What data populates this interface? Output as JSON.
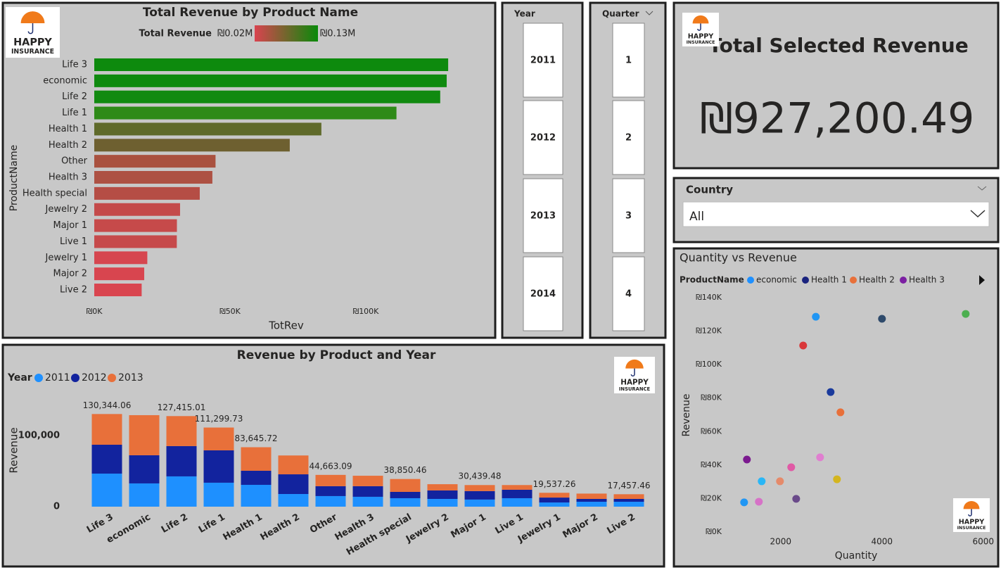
{
  "logo": {
    "line1": "HAPPY",
    "line2": "INSURANCE"
  },
  "chart_data": [
    {
      "type": "hbar",
      "title": "Total Revenue by Product Name",
      "legend_title": "Total Revenue",
      "legend_min_label": "₪0.02M",
      "legend_max_label": "₪0.13M",
      "gradient": [
        "#d9434f",
        "#0a8a0a"
      ],
      "categories": [
        "Life 3",
        "economic",
        "Life 2",
        "Life 1",
        "Health 1",
        "Health 2",
        "Other",
        "Health 3",
        "Health special",
        "Jewelry 2",
        "Major 1",
        "Live 1",
        "Jewelry 1",
        "Major 2",
        "Live 2"
      ],
      "values": [
        130344.06,
        129800,
        127415.01,
        111299.73,
        83645.72,
        72000,
        44663.09,
        43500,
        38850.46,
        31600,
        30439.48,
        30400,
        19537.26,
        18400,
        17457.46
      ],
      "colors": [
        "#0d8a0d",
        "#0f8a0f",
        "#118a10",
        "#2e8a18",
        "#5f6a2a",
        "#6e6030",
        "#a9513f",
        "#ad5143",
        "#b54d45",
        "#c44a4a",
        "#c64a4a",
        "#c64a4b",
        "#d6464f",
        "#d8454f",
        "#d9454f"
      ],
      "xlim": [
        0,
        132000
      ],
      "xticks": [
        {
          "value": 0,
          "label": "₪0K"
        },
        {
          "value": 50000,
          "label": "₪50K"
        },
        {
          "value": 100000,
          "label": "₪100K"
        }
      ],
      "xlabel": "TotRev",
      "ylabel": "ProductName"
    },
    {
      "type": "stacked_bar",
      "title": "Revenue by Product and Year",
      "legend_title": "Year",
      "categories": [
        "Life 3",
        "economic",
        "Life 2",
        "Life 1",
        "Health 1",
        "Health 2",
        "Other",
        "Health 3",
        "Health special",
        "Jewelry 2",
        "Major 1",
        "Live 1",
        "Jewelry 1",
        "Major 2",
        "Live 2"
      ],
      "series": [
        {
          "name": "2011",
          "color": "#1e90ff",
          "values": [
            46500,
            32700,
            42600,
            33700,
            30700,
            17800,
            14900,
            13900,
            11900,
            10900,
            10000,
            11900,
            5900,
            6900,
            6900
          ]
        },
        {
          "name": "2012",
          "color": "#12239e",
          "values": [
            40600,
            39600,
            42600,
            45500,
            19800,
            27700,
            13900,
            14900,
            8900,
            11900,
            11900,
            11900,
            6900,
            4000,
            4000
          ]
        },
        {
          "name": "2013",
          "color": "#e8703a",
          "values": [
            43200,
            56400,
            42200,
            32100,
            33100,
            26500,
            15900,
            14700,
            18100,
            8800,
            8500,
            6600,
            6700,
            7500,
            6600
          ]
        }
      ],
      "totals": [
        130344.06,
        null,
        127415.01,
        111299.73,
        83645.72,
        null,
        44663.09,
        null,
        38850.46,
        null,
        30439.48,
        null,
        19537.26,
        null,
        17457.46
      ],
      "total_labels": [
        "130,344.06",
        null,
        "127,415.01",
        "111,299.73",
        "83,645.72",
        null,
        "44,663.09",
        null,
        "38,850.46",
        null,
        "30,439.48",
        null,
        "19,537.26",
        null,
        "17,457.46"
      ],
      "ylim": [
        0,
        145000
      ],
      "yticks": [
        0,
        {
          "value": 100000,
          "label": "100,000"
        }
      ],
      "ylabel": "Revenue"
    },
    {
      "type": "scatter",
      "title": "Quantity vs Revenue",
      "legend": {
        "title": "ProductName",
        "items": [
          {
            "name": "economic",
            "color": "#1e90ff"
          },
          {
            "name": "Health 1",
            "color": "#1a237e"
          },
          {
            "name": "Health 2",
            "color": "#e8703a"
          },
          {
            "name": "Health 3",
            "color": "#7b1fa2"
          }
        ]
      },
      "x": [
        2694,
        4000,
        5653,
        2444,
        2986,
        3180,
        1333,
        2208,
        2778,
        1625,
        1986,
        3111,
        1278,
        1569,
        2306
      ],
      "y": [
        128600,
        127400,
        130300,
        111400,
        83600,
        71500,
        43300,
        38700,
        44600,
        30300,
        30300,
        31500,
        17700,
        18100,
        19800
      ],
      "colors": [
        "#2196f3",
        "#2e4a6b",
        "#4caf50",
        "#d9383a",
        "#1a3a9c",
        "#e8703a",
        "#7b1a8f",
        "#e05aa5",
        "#e07fd0",
        "#29b6f6",
        "#e58a6a",
        "#d4b51f",
        "#2196f3",
        "#d672c7",
        "#6a4a8a"
      ],
      "xlim": [
        350,
        6200
      ],
      "xticks": [
        2000,
        4000,
        6000
      ],
      "ylim": [
        0,
        140000
      ],
      "yticks": [
        {
          "value": 0,
          "label": "₪0K"
        },
        {
          "value": 20000,
          "label": "₪20K"
        },
        {
          "value": 40000,
          "label": "₪40K"
        },
        {
          "value": 60000,
          "label": "₪60K"
        },
        {
          "value": 80000,
          "label": "₪80K"
        },
        {
          "value": 100000,
          "label": "₪100K"
        },
        {
          "value": 120000,
          "label": "₪120K"
        },
        {
          "value": 140000,
          "label": "₪140K"
        }
      ],
      "xlabel": "Quantity",
      "ylabel": "Revenue"
    }
  ],
  "year_slicer": {
    "title": "Year",
    "items": [
      "2011",
      "2012",
      "2013",
      "2014"
    ]
  },
  "quarter_slicer": {
    "title": "Quarter",
    "items": [
      "1",
      "2",
      "3",
      "4"
    ]
  },
  "card": {
    "title": "Total Selected Revenue",
    "value": "₪927,200.49"
  },
  "country_filter": {
    "title": "Country",
    "selected": "All"
  }
}
